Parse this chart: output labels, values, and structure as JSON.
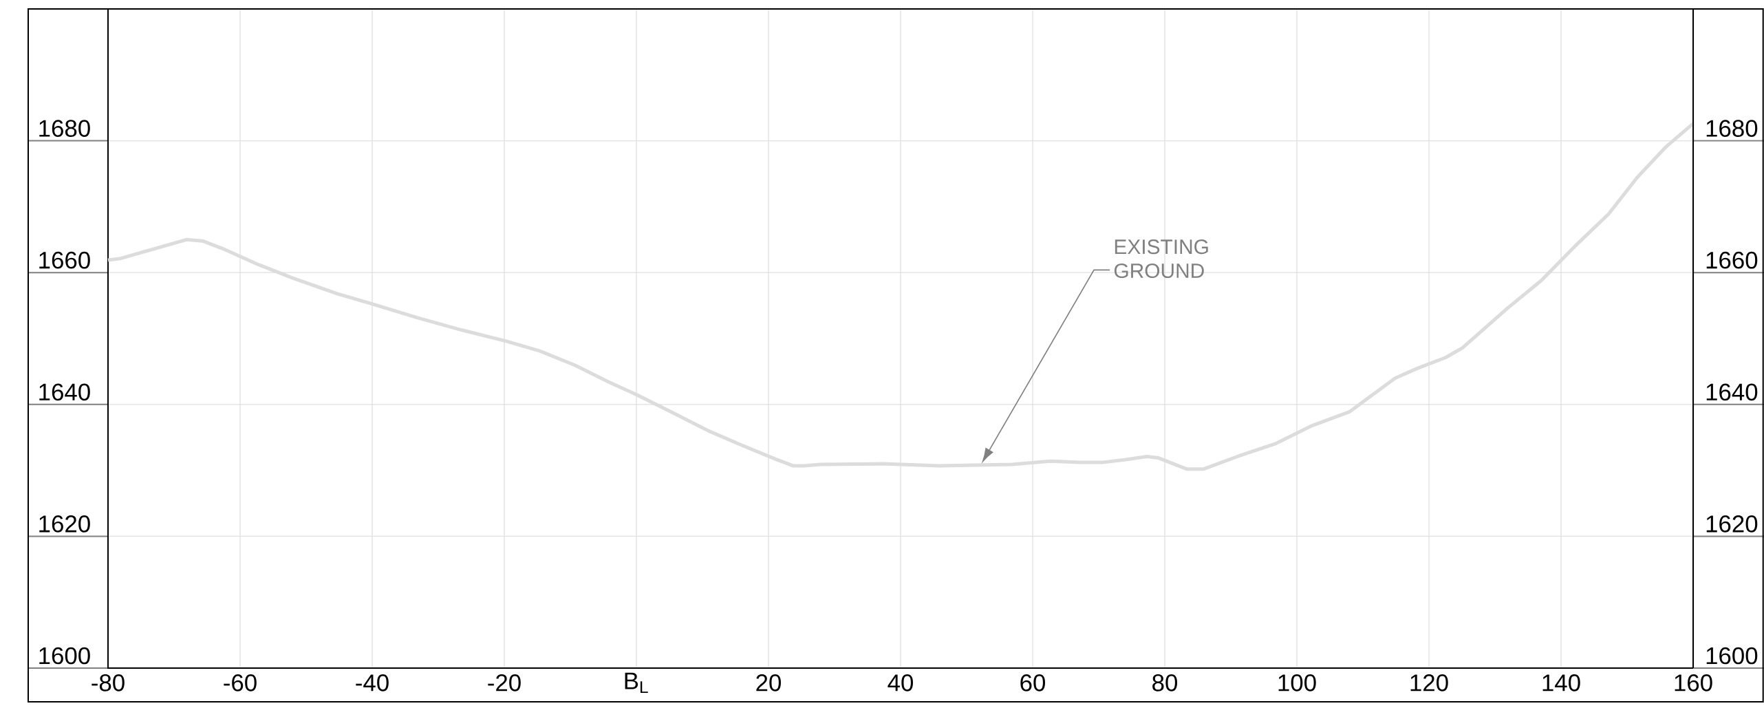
{
  "chart_data": {
    "type": "line",
    "x": [
      -80,
      -78.3,
      -68.1,
      -65.7,
      -62.3,
      -57.2,
      -52.1,
      -45.3,
      -40.2,
      -33.3,
      -26.5,
      -19.7,
      -14.6,
      -9.2,
      -4.4,
      0,
      5.8,
      10.9,
      16.0,
      21.1,
      23.7,
      25.4,
      27.9,
      37.3,
      45.8,
      56.9,
      62.8,
      67.1,
      70.5,
      73.9,
      77.3,
      79.0,
      83.3,
      85.9,
      91.0,
      96.9,
      102.1,
      108.0,
      114.9,
      118.3,
      122.5,
      125.1,
      131.9,
      137.0,
      142.1,
      147.2,
      151.5,
      155.8,
      160
    ],
    "values": [
      1661.9,
      1662.1,
      1665.0,
      1664.8,
      1663.5,
      1661.2,
      1659.2,
      1656.8,
      1655.3,
      1653.2,
      1651.3,
      1649.6,
      1648.1,
      1645.9,
      1643.5,
      1641.5,
      1638.6,
      1636.0,
      1633.8,
      1631.7,
      1630.7,
      1630.7,
      1630.9,
      1631.0,
      1630.7,
      1630.9,
      1631.4,
      1631.2,
      1631.2,
      1631.6,
      1632.1,
      1631.9,
      1630.2,
      1630.2,
      1632.1,
      1634.1,
      1636.7,
      1638.9,
      1644.0,
      1645.5,
      1647.1,
      1648.6,
      1654.6,
      1658.8,
      1664.0,
      1668.9,
      1674.4,
      1679.0,
      1682.6
    ],
    "color": "#dcdcdc",
    "xlim": [
      -80,
      160
    ],
    "xticks": [
      -80,
      -60,
      -40,
      -20,
      {
        "value": 0,
        "label": "B$_{L}$"
      },
      20,
      40,
      60,
      80,
      100,
      120,
      140,
      160
    ],
    "ylim": [
      1600,
      1700
    ],
    "yticks": [
      1600,
      1620,
      1640,
      1660,
      1680
    ],
    "y2lim": [
      1600,
      1700
    ],
    "y2ticks": [
      1600,
      1620,
      1640,
      1660,
      1680
    ],
    "grid": true,
    "annotations": [
      "EXISTING GROUND"
    ]
  }
}
